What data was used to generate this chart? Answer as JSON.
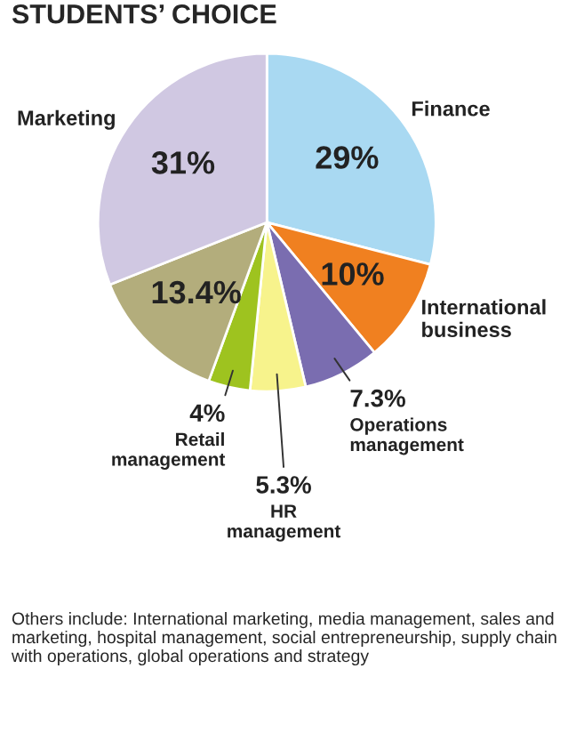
{
  "chart_data": {
    "type": "pie",
    "title": "STUDENTS’ CHOICE",
    "categories": [
      "Finance",
      "International business",
      "Operations management",
      "HR management",
      "Retail management",
      null,
      "Marketing"
    ],
    "values": [
      29,
      10,
      7.3,
      5.3,
      4,
      13.4,
      31
    ],
    "value_labels": [
      "29%",
      "10%",
      "7.3%",
      "5.3%",
      "4%",
      "13.4%",
      "31%"
    ],
    "colors": [
      "#a9d9f2",
      "#f08020",
      "#7a6db0",
      "#f7f38c",
      "#9ec31f",
      "#b3ad7c",
      "#d0c8e2"
    ],
    "annotations": [
      "Others include: International marketing, media management, sales and marketing, hospital management, social entrepreneurship, supply chain with operations, global operations and strategy"
    ]
  }
}
